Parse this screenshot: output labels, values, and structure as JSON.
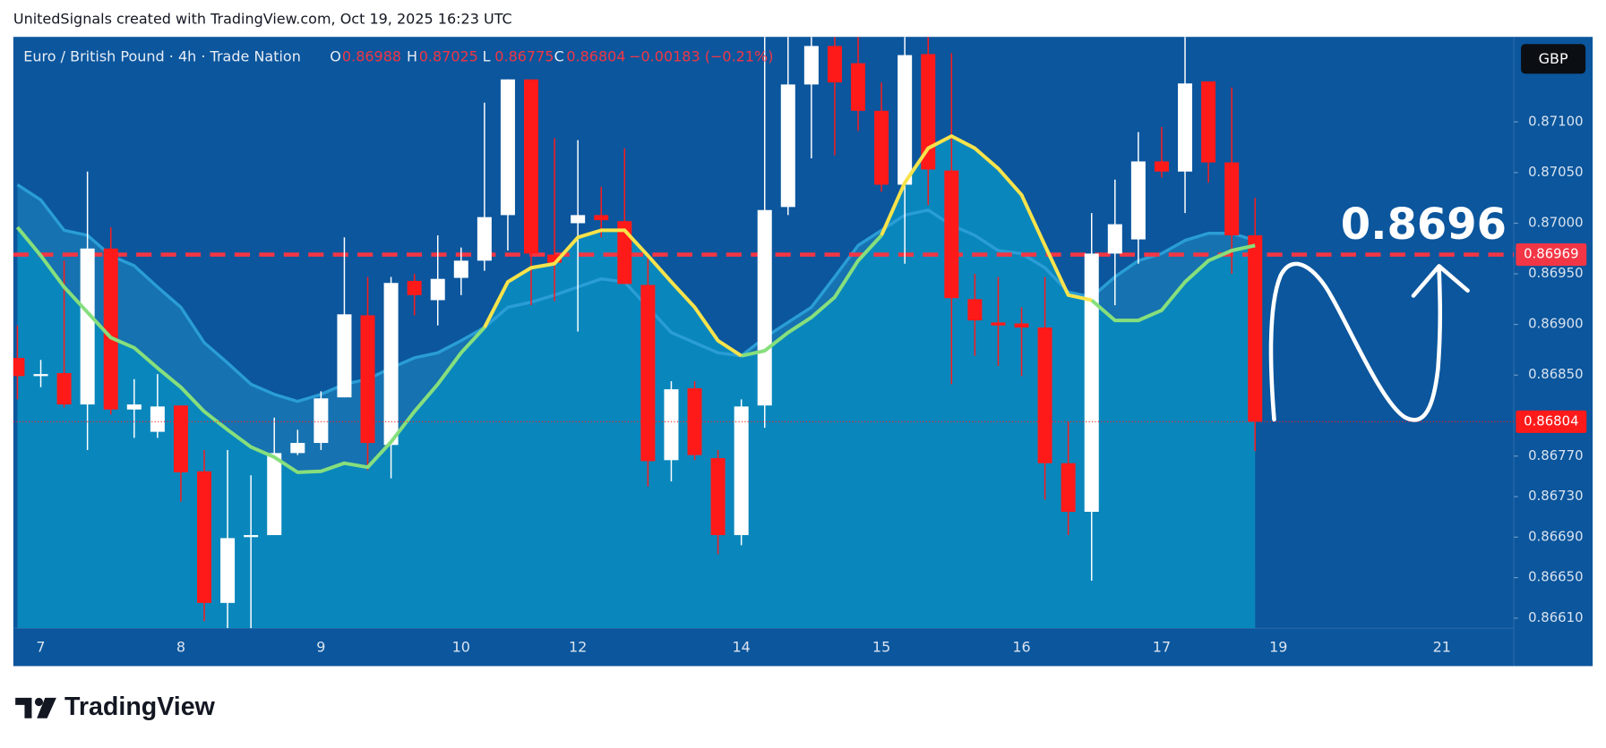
{
  "attribution": "UnitedSignals created with TradingView.com, Oct 19, 2025 16:23 UTC",
  "logo": "TradingView",
  "chart_data": {
    "type": "candlestick",
    "title": "Euro / British Pound · 4h · Trade Nation",
    "ohlc_labels": [
      "O",
      "H",
      "L",
      "C"
    ],
    "change": "−0.00183 (−0.21%)",
    "currency": "GBP",
    "annotation": "0.8696",
    "categories": [
      null,
      "7",
      null,
      null,
      null,
      null,
      null,
      "8",
      null,
      null,
      null,
      null,
      null,
      "9",
      null,
      null,
      null,
      null,
      null,
      "10",
      null,
      null,
      null,
      null,
      "12",
      null,
      null,
      null,
      null,
      null,
      null,
      "14",
      null,
      null,
      null,
      null,
      null,
      "15",
      null,
      null,
      null,
      null,
      null,
      "16",
      null,
      null,
      null,
      null,
      null,
      "17",
      null,
      null,
      null,
      null,
      "19",
      null,
      null,
      null,
      null,
      null,
      null,
      "21",
      null,
      null,
      null
    ],
    "open": [
      0.86867,
      0.86849,
      0.86852,
      0.86821,
      0.86975,
      0.86816,
      0.86794,
      0.8682,
      0.86755,
      0.86625,
      0.8669,
      0.86692,
      0.86773,
      0.86783,
      0.86828,
      0.86909,
      0.86781,
      0.86943,
      0.86924,
      0.86946,
      0.86963,
      0.87008,
      0.87142,
      0.86969,
      0.87,
      0.87008,
      0.87002,
      0.86939,
      0.86766,
      0.86837,
      0.86768,
      0.86692,
      0.8682,
      0.87016,
      0.87137,
      0.87175,
      0.87158,
      0.87111,
      0.87038,
      0.87167,
      0.87052,
      0.86925,
      0.86902,
      0.86901,
      0.86897,
      0.86763,
      0.86715,
      0.8697,
      0.86984,
      0.87061,
      0.87051,
      0.8714,
      0.8706,
      0.86988,
      null,
      null,
      null,
      null,
      null,
      null,
      null,
      null,
      null,
      null,
      null
    ],
    "high": [
      0.86899,
      0.86865,
      0.86963,
      0.87051,
      0.86996,
      0.86846,
      0.86851,
      0.8682,
      0.86776,
      0.86776,
      0.86751,
      0.86808,
      0.86796,
      0.86834,
      0.86986,
      0.86947,
      0.86947,
      0.8695,
      0.86988,
      0.86976,
      0.87119,
      0.87142,
      0.87142,
      0.87084,
      0.87082,
      0.87036,
      0.87074,
      0.8697,
      0.86844,
      0.86844,
      0.86776,
      0.86826,
      0.87184,
      0.87184,
      0.87184,
      0.87184,
      0.87184,
      0.87139,
      0.87184,
      0.87184,
      0.87168,
      0.8695,
      0.86947,
      0.86917,
      0.86947,
      0.86804,
      0.8701,
      0.87043,
      0.8709,
      0.87095,
      0.87184,
      0.8714,
      0.87134,
      0.87025,
      null,
      null,
      null,
      null,
      null,
      null,
      null,
      null,
      null,
      null,
      null
    ],
    "low": [
      0.86826,
      0.86838,
      0.86818,
      0.86776,
      0.86811,
      0.86788,
      0.86788,
      0.86725,
      0.86607,
      0.866,
      0.866,
      0.86692,
      0.86771,
      0.86776,
      0.86828,
      0.86756,
      0.86748,
      0.86909,
      0.86899,
      0.86929,
      0.86953,
      0.86973,
      0.86919,
      0.86923,
      0.86893,
      0.86986,
      0.8694,
      0.8674,
      0.86745,
      0.86766,
      0.86673,
      0.86682,
      0.86798,
      0.87008,
      0.87064,
      0.87067,
      0.87091,
      0.87031,
      0.8696,
      0.87018,
      0.86841,
      0.86869,
      0.86859,
      0.86849,
      0.86727,
      0.86692,
      0.86647,
      0.86919,
      0.8696,
      0.87045,
      0.8701,
      0.8704,
      0.8695,
      0.86775,
      null,
      null,
      null,
      null,
      null,
      null,
      null,
      null,
      null,
      null,
      null
    ],
    "close": [
      0.86849,
      0.86851,
      0.86821,
      0.86975,
      0.86816,
      0.86821,
      0.86819,
      0.86754,
      0.86625,
      0.86689,
      0.86692,
      0.86773,
      0.86783,
      0.86827,
      0.8691,
      0.86783,
      0.86941,
      0.86929,
      0.86945,
      0.86963,
      0.87006,
      0.87142,
      0.8697,
      0.86961,
      0.87008,
      0.87003,
      0.8694,
      0.86765,
      0.86836,
      0.86771,
      0.86692,
      0.86819,
      0.87013,
      0.87137,
      0.87175,
      0.87139,
      0.87111,
      0.87038,
      0.87166,
      0.87053,
      0.86926,
      0.86904,
      0.86899,
      0.86897,
      0.86763,
      0.86715,
      0.8697,
      0.86999,
      0.87061,
      0.87051,
      0.87138,
      0.8706,
      0.86988,
      0.86804,
      null,
      null,
      null,
      null,
      null,
      null,
      null,
      null,
      null,
      null,
      null
    ],
    "up_color": "#ffffff",
    "down_color": "#ff1a1a",
    "lines": [
      {
        "color": "#86df7c",
        "values": [
          0.86996,
          0.86968,
          0.86937,
          0.86912,
          0.86887,
          0.86877,
          0.86857,
          0.86838,
          0.86814,
          0.86796,
          0.86779,
          0.86769,
          0.86754,
          0.86755,
          0.86763,
          0.86759,
          0.86784,
          0.86814,
          0.86841,
          0.86872,
          0.86897,
          null,
          null,
          null,
          null,
          null,
          null,
          null,
          null,
          null,
          null,
          0.86869,
          0.86874,
          0.86892,
          0.86907,
          0.86927,
          0.86963,
          0.86988,
          null,
          null,
          null,
          null,
          null,
          null,
          null,
          null,
          0.86924,
          0.86904,
          0.86904,
          0.86914,
          0.86942,
          0.86963,
          0.86973,
          0.86978,
          null,
          null,
          null,
          null,
          null,
          null,
          null,
          null,
          null,
          null,
          null
        ]
      },
      {
        "color": "#f7e34b",
        "values": [
          null,
          null,
          null,
          null,
          null,
          null,
          null,
          null,
          null,
          null,
          null,
          null,
          null,
          null,
          null,
          null,
          null,
          null,
          null,
          null,
          0.86897,
          0.86942,
          0.86956,
          0.8696,
          0.86986,
          0.86993,
          0.86993,
          0.86968,
          0.86942,
          0.86917,
          0.86884,
          0.86869,
          null,
          null,
          null,
          null,
          null,
          0.86988,
          0.8704,
          0.87074,
          0.87086,
          0.87074,
          0.87054,
          0.87028,
          0.86978,
          0.86929,
          0.86924,
          null,
          null,
          null,
          null,
          null,
          null,
          null,
          null,
          null,
          null,
          null,
          null,
          null,
          null,
          null,
          null,
          null,
          null
        ]
      }
    ],
    "band": {
      "color": "#2a9dd6",
      "values": [
        0.87038,
        0.87023,
        0.86993,
        0.86988,
        0.86968,
        0.86958,
        0.86937,
        0.86917,
        0.86882,
        0.86862,
        0.86841,
        0.86831,
        0.86824,
        0.86831,
        0.86841,
        0.86846,
        0.86857,
        0.86867,
        0.86872,
        0.86884,
        0.86897,
        0.86917,
        0.86922,
        0.86929,
        0.86937,
        0.86945,
        0.86942,
        0.86917,
        0.86892,
        0.86882,
        0.86872,
        0.86869,
        0.86887,
        0.86902,
        0.86917,
        0.86947,
        0.86978,
        0.86993,
        0.87008,
        0.87013,
        0.86998,
        0.86988,
        0.86973,
        0.8697,
        0.86956,
        0.86932,
        0.86927,
        0.86947,
        0.86963,
        0.8697,
        0.86983,
        0.8699,
        0.8699,
        0.86983,
        null,
        null,
        null,
        null,
        null,
        null,
        null,
        null,
        null,
        null,
        null
      ]
    },
    "level": {
      "value": 0.86969,
      "color": "#f23645"
    },
    "ylim": [
      0.866,
      0.87184
    ],
    "yticks": [
      {
        "value": 0.871,
        "label": "0.87100"
      },
      {
        "value": 0.8705,
        "label": "0.87050"
      },
      {
        "value": 0.87,
        "label": "0.87000"
      },
      {
        "value": 0.8695,
        "label": "0.86950"
      },
      {
        "value": 0.869,
        "label": "0.86900"
      },
      {
        "value": 0.8685,
        "label": "0.86850"
      },
      {
        "value": 0.8677,
        "label": "0.86770"
      },
      {
        "value": 0.8673,
        "label": "0.86730"
      },
      {
        "value": 0.8669,
        "label": "0.86690"
      },
      {
        "value": 0.8665,
        "label": "0.86650"
      },
      {
        "value": 0.8661,
        "label": "0.86610"
      }
    ]
  }
}
